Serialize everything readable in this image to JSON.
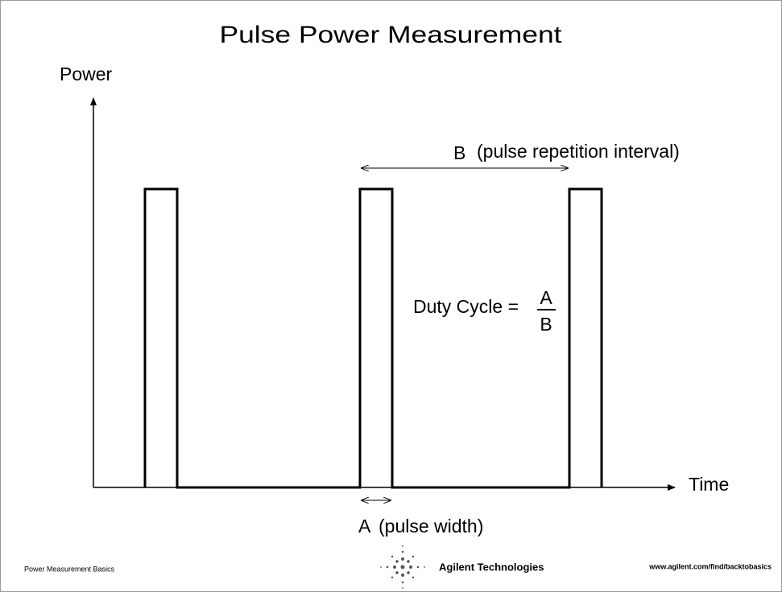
{
  "title": "Pulse Power Measurement",
  "axes": {
    "y_label": "Power",
    "x_label": "Time"
  },
  "annotations": {
    "interval": {
      "letter": "B",
      "text": "(pulse repetition interval)"
    },
    "duty_cycle": {
      "text": "Duty Cycle =",
      "numerator": "A",
      "denominator": "B"
    },
    "width": {
      "letter": "A",
      "text": "(pulse width)"
    }
  },
  "footer": {
    "left": "Power Measurement Basics",
    "company": "Agilent Technologies",
    "url": "www.agilent.com/find/backtobasics"
  }
}
